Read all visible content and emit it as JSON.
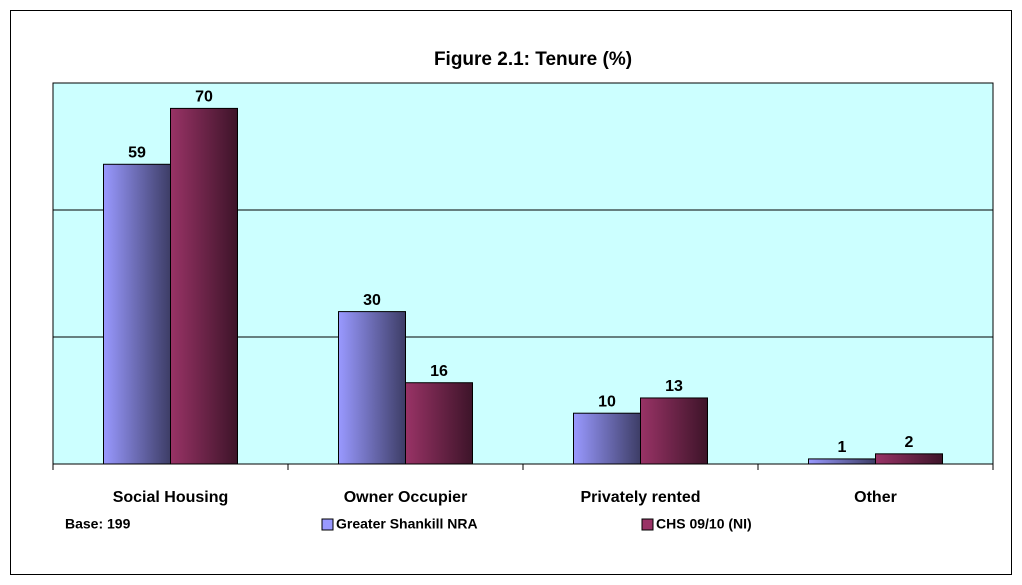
{
  "chart_data": {
    "type": "bar",
    "title": "Figure 2.1: Tenure (%)",
    "categories": [
      "Social Housing",
      "Owner Occupier",
      "Privately rented",
      "Other"
    ],
    "series": [
      {
        "name": "Greater Shankill NRA",
        "color": "#9999ff",
        "values": [
          59,
          30,
          10,
          1
        ]
      },
      {
        "name": "CHS 09/10 (NI)",
        "color": "#993366",
        "values": [
          70,
          16,
          13,
          2
        ]
      }
    ],
    "ylim": [
      0,
      75
    ],
    "yticks": [
      0,
      25,
      50,
      75
    ],
    "grid": true,
    "plot_background": "#ccffff",
    "annotation": "Base: 199"
  }
}
